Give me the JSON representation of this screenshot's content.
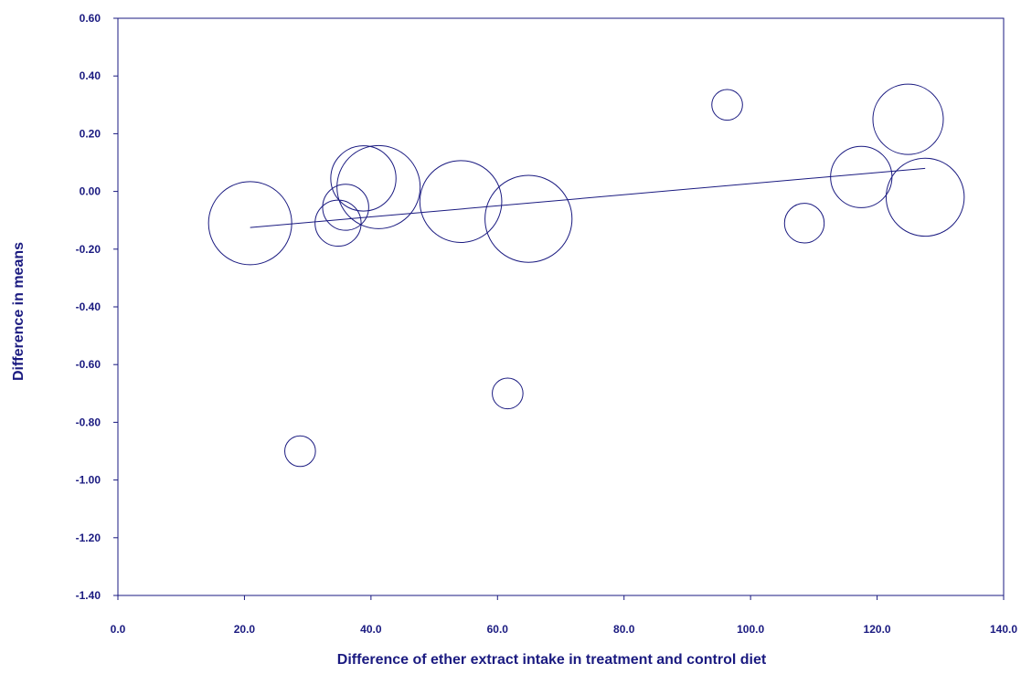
{
  "colors": {
    "ink": "#1a1a80",
    "background": "#ffffff"
  },
  "chart_data": {
    "type": "scatter",
    "variant": "bubble meta-regression with fitted line",
    "title": "",
    "xlabel": "Difference of ether extract intake in treatment and control diet",
    "ylabel": "Difference in means",
    "xlim": [
      0,
      140
    ],
    "ylim": [
      -1.4,
      0.6
    ],
    "x_ticks": [
      "0.0",
      "20.0",
      "40.0",
      "60.0",
      "80.0",
      "100.0",
      "120.0",
      "140.0"
    ],
    "y_ticks": [
      "0.60",
      "0.40",
      "0.20",
      "0.00",
      "-0.20",
      "-0.40",
      "-0.60",
      "-0.80",
      "-1.00",
      "-1.20",
      "-1.40"
    ],
    "grid": false,
    "legend": "none",
    "points": [
      {
        "x": 20.9,
        "y": -0.11,
        "weight": 6.5
      },
      {
        "x": 28.8,
        "y": -0.9,
        "weight": 2.4
      },
      {
        "x": 34.8,
        "y": -0.11,
        "weight": 3.6
      },
      {
        "x": 36.0,
        "y": -0.055,
        "weight": 3.6
      },
      {
        "x": 38.8,
        "y": 0.045,
        "weight": 5.1
      },
      {
        "x": 41.2,
        "y": 0.015,
        "weight": 6.5
      },
      {
        "x": 54.2,
        "y": -0.035,
        "weight": 6.4
      },
      {
        "x": 61.6,
        "y": -0.7,
        "weight": 2.4
      },
      {
        "x": 64.9,
        "y": -0.095,
        "weight": 6.8
      },
      {
        "x": 96.3,
        "y": 0.3,
        "weight": 2.4
      },
      {
        "x": 108.5,
        "y": -0.11,
        "weight": 3.1
      },
      {
        "x": 117.5,
        "y": 0.05,
        "weight": 4.8
      },
      {
        "x": 124.9,
        "y": 0.25,
        "weight": 5.5
      },
      {
        "x": 127.6,
        "y": -0.02,
        "weight": 6.1
      }
    ],
    "regression_line": {
      "x": [
        20.9,
        127.6
      ],
      "y": [
        -0.125,
        0.08
      ]
    }
  }
}
